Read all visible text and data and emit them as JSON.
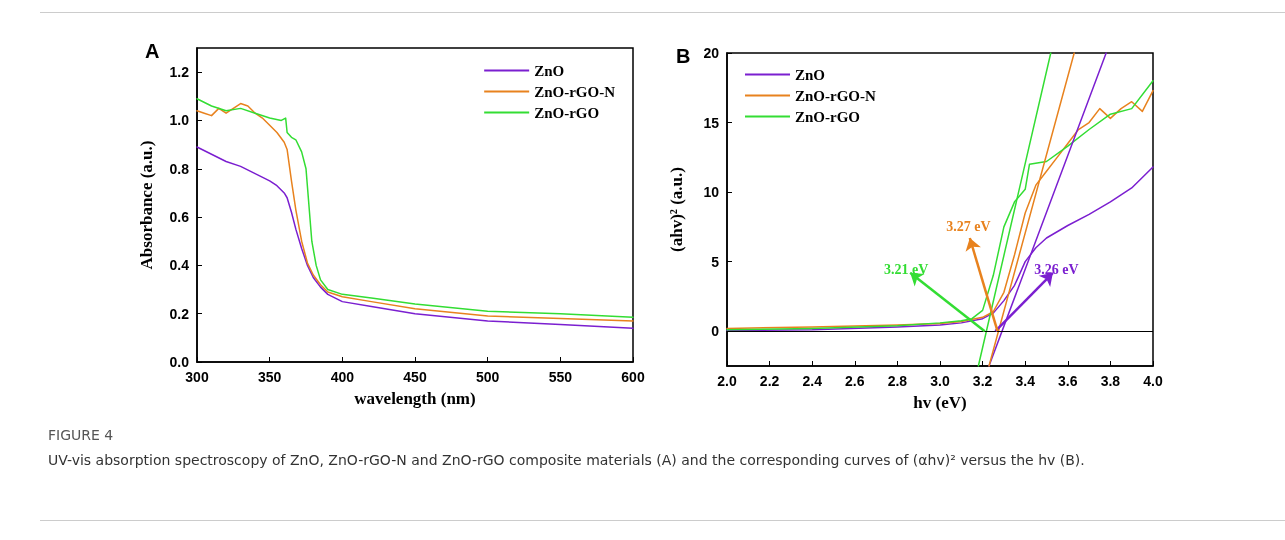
{
  "chart_data": [
    {
      "type": "line",
      "title": "A",
      "xlabel": "wavelength (nm)",
      "ylabel": "Absorbance (a.u.)",
      "xlim": [
        300,
        600
      ],
      "xticks": [
        300,
        350,
        400,
        450,
        500,
        550,
        600
      ],
      "ylim": [
        0,
        1.3
      ],
      "yticks": [
        {
          "value": 0,
          "label": "0.0"
        },
        0.2,
        0.4,
        0.6,
        0.8,
        {
          "value": 1,
          "label": "1.0"
        },
        1.2
      ],
      "grid": false,
      "legend": "top right",
      "annotations": [
        "FIGURE 4",
        "UV-vis absorption spectroscopy of ZnO, ZnO-rGO-N and ZnO-rGO composite materials (A) and the corresponding curves of (αhv)² versus the hv (B)."
      ],
      "series": [
        {
          "name": "ZnO",
          "color": "#7b1fd0",
          "x": [
            300,
            310,
            320,
            330,
            340,
            350,
            355,
            360,
            362,
            365,
            368,
            372,
            376,
            380,
            385,
            390,
            400,
            420,
            450,
            500,
            550,
            600
          ],
          "values": [
            0.89,
            0.86,
            0.83,
            0.81,
            0.78,
            0.75,
            0.73,
            0.7,
            0.68,
            0.62,
            0.55,
            0.47,
            0.4,
            0.35,
            0.31,
            0.28,
            0.25,
            0.23,
            0.2,
            0.17,
            0.155,
            0.14
          ]
        },
        {
          "name": "ZnO-rGO-N",
          "color": "#e8821e",
          "x": [
            300,
            305,
            310,
            315,
            320,
            325,
            330,
            335,
            340,
            345,
            350,
            355,
            360,
            362,
            365,
            368,
            372,
            376,
            380,
            385,
            390,
            400,
            420,
            450,
            500,
            550,
            600
          ],
          "values": [
            1.04,
            1.03,
            1.02,
            1.05,
            1.03,
            1.05,
            1.07,
            1.06,
            1.03,
            1.01,
            0.98,
            0.95,
            0.91,
            0.88,
            0.75,
            0.63,
            0.5,
            0.41,
            0.36,
            0.32,
            0.29,
            0.27,
            0.25,
            0.22,
            0.19,
            0.18,
            0.17
          ]
        },
        {
          "name": "ZnO-rGO",
          "color": "#33dd33",
          "x": [
            300,
            310,
            320,
            330,
            340,
            350,
            358,
            361,
            362,
            365,
            368,
            372,
            375,
            377,
            379,
            382,
            385,
            390,
            400,
            420,
            450,
            500,
            550,
            600
          ],
          "values": [
            1.09,
            1.06,
            1.04,
            1.05,
            1.03,
            1.01,
            1.0,
            1.01,
            0.95,
            0.93,
            0.92,
            0.87,
            0.8,
            0.65,
            0.5,
            0.4,
            0.34,
            0.3,
            0.28,
            0.265,
            0.24,
            0.21,
            0.2,
            0.185
          ]
        }
      ]
    },
    {
      "type": "line",
      "title": "B",
      "xlabel": "hv (eV)",
      "ylabel": "(ahv)² (a.u.)",
      "xlim": [
        2,
        4
      ],
      "xticks": [
        {
          "value": 2,
          "label": "2.0"
        },
        2.2,
        2.4,
        2.6,
        2.8,
        {
          "value": 3,
          "label": "3.0"
        },
        3.2,
        3.4,
        3.6,
        3.8,
        {
          "value": 4,
          "label": "4.0"
        }
      ],
      "ylim": [
        -2.5,
        20
      ],
      "yticks": [
        0,
        5,
        10,
        15,
        20
      ],
      "grid": false,
      "legend": "top left",
      "ref_lines": [
        {
          "axis": "y",
          "value": 0,
          "color": "#000000"
        }
      ],
      "annotations": [
        {
          "text": "3.26 eV",
          "x": 3.26,
          "y": 0
        },
        {
          "text": "3.27 eV",
          "x": 3.27,
          "y": 0
        },
        {
          "text": "3.21 eV",
          "x": 3.21,
          "y": 0
        }
      ],
      "series": [
        {
          "name": "ZnO",
          "color": "#7b1fd0",
          "x": [
            2.0,
            2.4,
            2.8,
            3.0,
            3.1,
            3.2,
            3.25,
            3.3,
            3.35,
            3.4,
            3.45,
            3.5,
            3.6,
            3.7,
            3.8,
            3.9,
            4.0
          ],
          "values": [
            0.05,
            0.1,
            0.3,
            0.45,
            0.6,
            0.9,
            1.3,
            2.2,
            3.3,
            5.0,
            6.0,
            6.7,
            7.6,
            8.4,
            9.3,
            10.3,
            11.8
          ]
        },
        {
          "name": "ZnO-rGO-N",
          "color": "#e8821e",
          "x": [
            2.0,
            2.4,
            2.8,
            3.0,
            3.1,
            3.2,
            3.25,
            3.3,
            3.35,
            3.4,
            3.45,
            3.5,
            3.55,
            3.6,
            3.65,
            3.7,
            3.75,
            3.8,
            3.85,
            3.9,
            3.95,
            4.0
          ],
          "values": [
            0.2,
            0.3,
            0.45,
            0.55,
            0.7,
            1.0,
            1.4,
            2.8,
            5.5,
            8.5,
            10.5,
            11.5,
            12.5,
            13.5,
            14.5,
            15.0,
            16.0,
            15.3,
            16.0,
            16.5,
            15.8,
            17.3
          ]
        },
        {
          "name": "ZnO-rGO",
          "color": "#33dd33",
          "x": [
            2.0,
            2.4,
            2.8,
            3.0,
            3.1,
            3.15,
            3.2,
            3.25,
            3.3,
            3.35,
            3.4,
            3.42,
            3.5,
            3.6,
            3.7,
            3.8,
            3.9,
            4.0
          ],
          "values": [
            0.1,
            0.2,
            0.4,
            0.6,
            0.75,
            0.9,
            1.5,
            4.0,
            7.5,
            9.3,
            10.2,
            12.0,
            12.2,
            13.3,
            14.5,
            15.6,
            16.0,
            18.0
          ]
        },
        {
          "type": "line",
          "color": "#7b1fd0",
          "x": [
            3.23,
            3.78
          ],
          "values": [
            -2.5,
            20
          ]
        },
        {
          "type": "line",
          "color": "#e8821e",
          "x": [
            3.23,
            3.63
          ],
          "values": [
            -2.5,
            20
          ]
        },
        {
          "type": "line",
          "color": "#33dd33",
          "x": [
            3.18,
            3.52
          ],
          "values": [
            -2.5,
            20
          ]
        }
      ]
    }
  ]
}
